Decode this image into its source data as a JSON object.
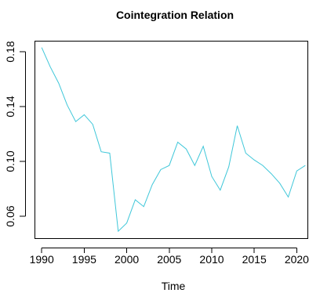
{
  "chart_data": {
    "type": "line",
    "title": "Cointegration Relation",
    "xlabel": "Time",
    "ylabel": "",
    "xlim": [
      1989.2,
      2021.3
    ],
    "ylim": [
      0.0437,
      0.1877
    ],
    "x_ticks": [
      1990,
      1995,
      2000,
      2005,
      2010,
      2015,
      2020
    ],
    "x_tick_labels": [
      "1990",
      "1995",
      "2000",
      "2005",
      "2010",
      "2015",
      "2020"
    ],
    "y_ticks": [
      0.06,
      0.1,
      0.14,
      0.18
    ],
    "y_tick_labels": [
      "0.06",
      "0.10",
      "0.14",
      "0.18"
    ],
    "grid": false,
    "legend": "none",
    "series": [
      {
        "color": "#3fc7d9",
        "x": [
          1990,
          1991,
          1992,
          1993,
          1994,
          1995,
          1996,
          1997,
          1998,
          1999,
          2000,
          2001,
          2002,
          2003,
          2004,
          2005,
          2006,
          2007,
          2008,
          2009,
          2010,
          2011,
          2012,
          2013,
          2014,
          2015,
          2016,
          2017,
          2018,
          2019,
          2020,
          2021
        ],
        "values": [
          0.183,
          0.169,
          0.157,
          0.141,
          0.129,
          0.134,
          0.127,
          0.107,
          0.106,
          0.049,
          0.055,
          0.072,
          0.067,
          0.083,
          0.094,
          0.097,
          0.114,
          0.109,
          0.097,
          0.111,
          0.089,
          0.079,
          0.096,
          0.126,
          0.106,
          0.101,
          0.097,
          0.091,
          0.084,
          0.074,
          0.093,
          0.097
        ]
      }
    ]
  }
}
